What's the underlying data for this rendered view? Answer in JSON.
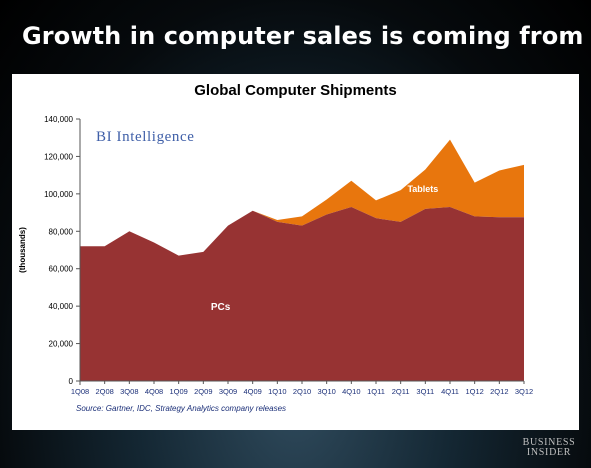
{
  "slide": {
    "title": "Growth in computer sales is coming from tablets",
    "source": "Source: Gartner, IDC, Strategy Analytics company releases"
  },
  "brand": {
    "logo_line1": "BUSINESS",
    "logo_line2": "INSIDER"
  },
  "chart_data": {
    "type": "area",
    "stacked": true,
    "title": "Global Computer Shipments",
    "watermark": "BI Intelligence",
    "xlabel": "",
    "ylabel": "(thousands)",
    "ylim": [
      0,
      140000
    ],
    "ytick_values": [
      0,
      20000,
      40000,
      60000,
      80000,
      100000,
      120000,
      140000
    ],
    "ytick_labels": [
      "0",
      "20,000",
      "40,000",
      "60,000",
      "80,000",
      "100,000",
      "120,000",
      "140,000"
    ],
    "grid": false,
    "legend": "inline labels on areas",
    "categories": [
      "1Q08",
      "2Q08",
      "3Q08",
      "4Q08",
      "1Q09",
      "2Q09",
      "3Q09",
      "4Q09",
      "1Q10",
      "2Q10",
      "3Q10",
      "4Q10",
      "1Q11",
      "2Q11",
      "3Q11",
      "4Q11",
      "1Q12",
      "2Q12",
      "3Q12"
    ],
    "series": [
      {
        "name": "PCs",
        "color": "#973333",
        "values": [
          72000,
          72000,
          80000,
          74000,
          67000,
          69000,
          83000,
          91000,
          85000,
          83000,
          89000,
          93000,
          87000,
          85000,
          92000,
          93000,
          88000,
          87500,
          87500
        ]
      },
      {
        "name": "Tablets",
        "color": "#e8760d",
        "values": [
          0,
          0,
          0,
          0,
          0,
          0,
          0,
          0,
          1000,
          5000,
          8000,
          14000,
          9500,
          17000,
          21000,
          36000,
          18000,
          25000,
          28000
        ]
      }
    ]
  }
}
